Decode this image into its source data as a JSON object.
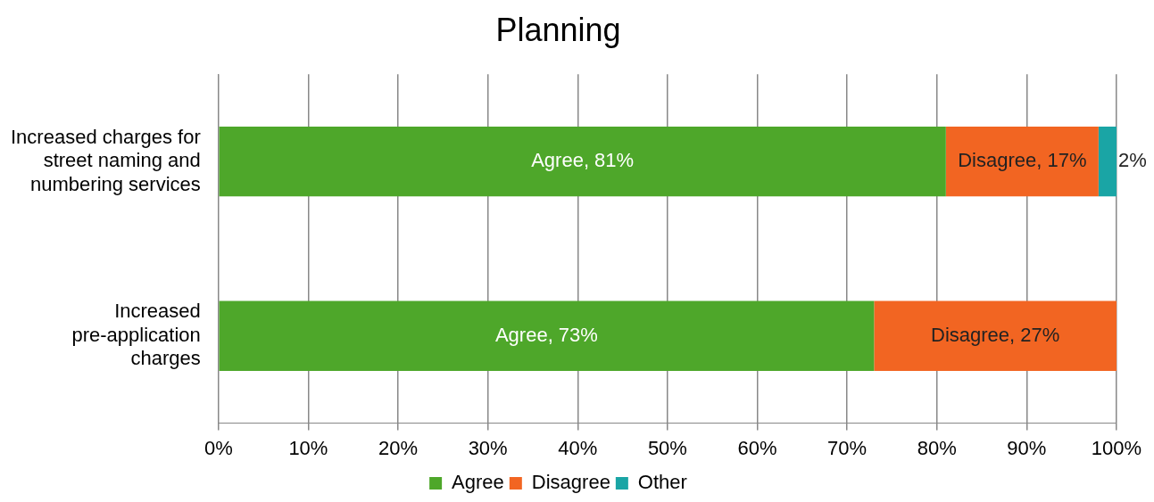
{
  "chart_data": {
    "type": "bar",
    "orientation": "horizontal",
    "stacked": true,
    "title": "Planning",
    "categories": [
      "Increased charges for street naming and numbering services",
      "Increased pre-application charges"
    ],
    "series": [
      {
        "name": "Agree",
        "color": "#4ea72a",
        "values": [
          81,
          73
        ],
        "value_labels": [
          "Agree, 81%",
          "Agree, 73%"
        ]
      },
      {
        "name": "Disagree",
        "color": "#f26522",
        "values": [
          17,
          27
        ],
        "value_labels": [
          "Disagree, 17%",
          "Disagree, 27%"
        ]
      },
      {
        "name": "Other",
        "color": "#1aa5a5",
        "values": [
          2,
          null
        ],
        "value_labels": [
          "2%",
          null
        ]
      }
    ],
    "xlim": [
      0,
      100
    ],
    "xticks": [
      {
        "value": 0,
        "label": "0%"
      },
      {
        "value": 10,
        "label": "10%"
      },
      {
        "value": 20,
        "label": "20%"
      },
      {
        "value": 30,
        "label": "30%"
      },
      {
        "value": 40,
        "label": "40%"
      },
      {
        "value": 50,
        "label": "50%"
      },
      {
        "value": 60,
        "label": "60%"
      },
      {
        "value": 70,
        "label": "70%"
      },
      {
        "value": 80,
        "label": "80%"
      },
      {
        "value": 90,
        "label": "90%"
      },
      {
        "value": 100,
        "label": "100%"
      }
    ],
    "grid": "x",
    "legend": "bottom"
  }
}
